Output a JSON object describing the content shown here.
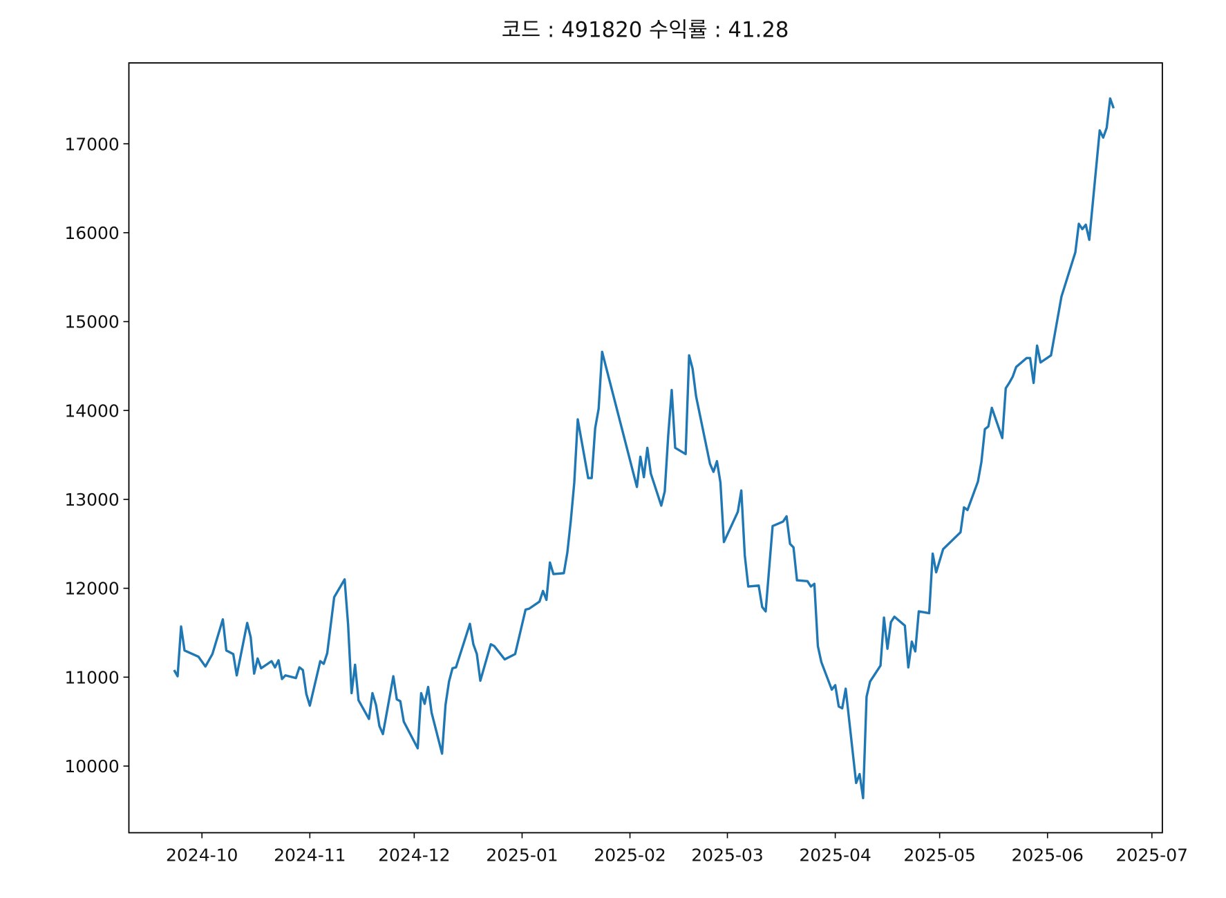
{
  "chart_data": {
    "type": "line",
    "title": "코드 : 491820 수익률 : 41.28",
    "color": "#1f77b4",
    "x": [
      "2024-09-23",
      "2024-09-24",
      "2024-09-25",
      "2024-09-26",
      "2024-09-30",
      "2024-10-02",
      "2024-10-04",
      "2024-10-07",
      "2024-10-08",
      "2024-10-10",
      "2024-10-11",
      "2024-10-14",
      "2024-10-15",
      "2024-10-16",
      "2024-10-17",
      "2024-10-18",
      "2024-10-21",
      "2024-10-22",
      "2024-10-23",
      "2024-10-24",
      "2024-10-25",
      "2024-10-28",
      "2024-10-29",
      "2024-10-30",
      "2024-10-31",
      "2024-11-01",
      "2024-11-04",
      "2024-11-05",
      "2024-11-06",
      "2024-11-08",
      "2024-11-11",
      "2024-11-12",
      "2024-11-13",
      "2024-11-14",
      "2024-11-15",
      "2024-11-18",
      "2024-11-19",
      "2024-11-20",
      "2024-11-21",
      "2024-11-22",
      "2024-11-25",
      "2024-11-26",
      "2024-11-27",
      "2024-11-28",
      "2024-12-02",
      "2024-12-03",
      "2024-12-04",
      "2024-12-05",
      "2024-12-06",
      "2024-12-09",
      "2024-12-10",
      "2024-12-11",
      "2024-12-12",
      "2024-12-13",
      "2024-12-17",
      "2024-12-18",
      "2024-12-19",
      "2024-12-20",
      "2024-12-23",
      "2024-12-24",
      "2024-12-27",
      "2024-12-30",
      "2025-01-02",
      "2025-01-03",
      "2025-01-06",
      "2025-01-07",
      "2025-01-08",
      "2025-01-09",
      "2025-01-10",
      "2025-01-13",
      "2025-01-14",
      "2025-01-15",
      "2025-01-16",
      "2025-01-17",
      "2025-01-20",
      "2025-01-21",
      "2025-01-22",
      "2025-01-23",
      "2025-01-24",
      "2025-02-03",
      "2025-02-04",
      "2025-02-05",
      "2025-02-06",
      "2025-02-07",
      "2025-02-10",
      "2025-02-11",
      "2025-02-12",
      "2025-02-13",
      "2025-02-14",
      "2025-02-17",
      "2025-02-18",
      "2025-02-19",
      "2025-02-20",
      "2025-02-24",
      "2025-02-25",
      "2025-02-26",
      "2025-02-27",
      "2025-02-28",
      "2025-03-04",
      "2025-03-05",
      "2025-03-06",
      "2025-03-07",
      "2025-03-10",
      "2025-03-11",
      "2025-03-12",
      "2025-03-14",
      "2025-03-17",
      "2025-03-18",
      "2025-03-19",
      "2025-03-20",
      "2025-03-21",
      "2025-03-24",
      "2025-03-25",
      "2025-03-26",
      "2025-03-27",
      "2025-03-28",
      "2025-03-31",
      "2025-04-01",
      "2025-04-02",
      "2025-04-03",
      "2025-04-04",
      "2025-04-07",
      "2025-04-08",
      "2025-04-09",
      "2025-04-10",
      "2025-04-11",
      "2025-04-14",
      "2025-04-15",
      "2025-04-16",
      "2025-04-17",
      "2025-04-18",
      "2025-04-21",
      "2025-04-22",
      "2025-04-23",
      "2025-04-24",
      "2025-04-25",
      "2025-04-28",
      "2025-04-29",
      "2025-04-30",
      "2025-05-02",
      "2025-05-07",
      "2025-05-08",
      "2025-05-09",
      "2025-05-12",
      "2025-05-13",
      "2025-05-14",
      "2025-05-15",
      "2025-05-16",
      "2025-05-19",
      "2025-05-20",
      "2025-05-21",
      "2025-05-22",
      "2025-05-23",
      "2025-05-26",
      "2025-05-27",
      "2025-05-28",
      "2025-05-29",
      "2025-05-30",
      "2025-06-02",
      "2025-06-05",
      "2025-06-09",
      "2025-06-10",
      "2025-06-11",
      "2025-06-12",
      "2025-06-13",
      "2025-06-16",
      "2025-06-17",
      "2025-06-18",
      "2025-06-19",
      "2025-06-20"
    ],
    "values": [
      11080,
      11010,
      11570,
      11300,
      11230,
      11120,
      11260,
      11650,
      11300,
      11260,
      11020,
      11610,
      11450,
      11040,
      11210,
      11100,
      11180,
      11110,
      11190,
      10980,
      11020,
      10990,
      11110,
      11080,
      10810,
      10680,
      11180,
      11150,
      11270,
      11900,
      12100,
      11590,
      10820,
      11140,
      10740,
      10530,
      10820,
      10690,
      10450,
      10360,
      11010,
      10750,
      10730,
      10500,
      10200,
      10820,
      10700,
      10890,
      10600,
      10140,
      10690,
      10950,
      11100,
      11110,
      11600,
      11370,
      11260,
      10960,
      11370,
      11350,
      11200,
      11260,
      11760,
      11770,
      11850,
      11970,
      11870,
      12290,
      12160,
      12170,
      12400,
      12760,
      13190,
      13900,
      13240,
      13240,
      13800,
      14020,
      14660,
      13140,
      13480,
      13250,
      13580,
      13290,
      12930,
      13090,
      13720,
      14230,
      13580,
      13510,
      14620,
      14470,
      14160,
      13400,
      13310,
      13430,
      13190,
      12520,
      12860,
      13100,
      12370,
      12020,
      12030,
      11790,
      11740,
      12700,
      12750,
      12810,
      12500,
      12460,
      12090,
      12080,
      12020,
      12050,
      11350,
      11170,
      10860,
      10910,
      10670,
      10650,
      10870,
      9810,
      9910,
      9640,
      10780,
      10950,
      11130,
      11670,
      11320,
      11620,
      11680,
      11580,
      11110,
      11400,
      11290,
      11740,
      11720,
      12390,
      12180,
      12440,
      12630,
      12910,
      12880,
      13200,
      13420,
      13790,
      13820,
      14030,
      13690,
      14250,
      14310,
      14380,
      14490,
      14590,
      14590,
      14310,
      14730,
      14540,
      14620,
      15280,
      15780,
      16100,
      16040,
      16090,
      15920,
      17150,
      17070,
      17180,
      17510,
      17400
    ],
    "xlim": [
      "2024-09-10",
      "2025-07-04"
    ],
    "xticks": [
      {
        "value": "2024-10-01",
        "label": "2024-10"
      },
      {
        "value": "2024-11-01",
        "label": "2024-11"
      },
      {
        "value": "2024-12-01",
        "label": "2024-12"
      },
      {
        "value": "2025-01-01",
        "label": "2025-01"
      },
      {
        "value": "2025-02-01",
        "label": "2025-02"
      },
      {
        "value": "2025-03-01",
        "label": "2025-03"
      },
      {
        "value": "2025-04-01",
        "label": "2025-04"
      },
      {
        "value": "2025-05-01",
        "label": "2025-05"
      },
      {
        "value": "2025-06-01",
        "label": "2025-06"
      },
      {
        "value": "2025-07-01",
        "label": "2025-07"
      }
    ],
    "ylim": [
      9250,
      17910
    ],
    "yticks": [
      10000,
      11000,
      12000,
      13000,
      14000,
      15000,
      16000,
      17000
    ]
  }
}
